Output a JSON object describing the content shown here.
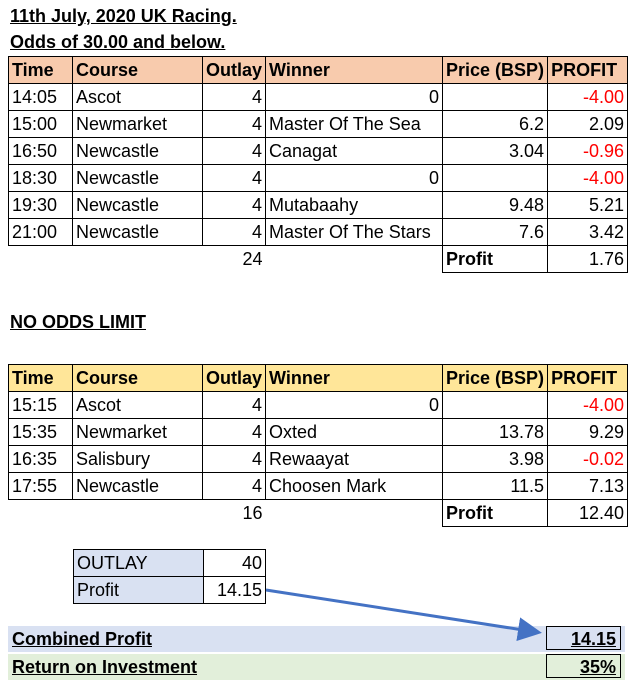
{
  "heading": {
    "line1": "11th July, 2020 UK Racing.",
    "line2": "Odds of 30.00 and below."
  },
  "headers": [
    "Time",
    "Course",
    "Outlay",
    "Winner",
    "Price (BSP)",
    "PROFIT"
  ],
  "table1": {
    "rows": [
      {
        "time": "14:05",
        "course": "Ascot",
        "outlay": "4",
        "winner": "0",
        "winner_align": "right",
        "price": "",
        "profit": "-4.00",
        "negative": true
      },
      {
        "time": "15:00",
        "course": "Newmarket",
        "outlay": "4",
        "winner": "Master Of The Sea",
        "winner_align": "left",
        "price": "6.2",
        "profit": "2.09",
        "negative": false
      },
      {
        "time": "16:50",
        "course": "Newcastle",
        "outlay": "4",
        "winner": "Canagat",
        "winner_align": "left",
        "price": "3.04",
        "profit": "-0.96",
        "negative": true
      },
      {
        "time": "18:30",
        "course": "Newcastle",
        "outlay": "4",
        "winner": "0",
        "winner_align": "right",
        "price": "",
        "profit": "-4.00",
        "negative": true
      },
      {
        "time": "19:30",
        "course": "Newcastle",
        "outlay": "4",
        "winner": "Mutabaahy",
        "winner_align": "left",
        "price": "9.48",
        "profit": "5.21",
        "negative": false
      },
      {
        "time": "21:00",
        "course": "Newcastle",
        "outlay": "4",
        "winner": "Master Of The Stars",
        "winner_align": "left",
        "price": "7.6",
        "profit": "3.42",
        "negative": false
      }
    ],
    "outlay_total": "24",
    "profit_label": "Profit",
    "profit_total": "1.76"
  },
  "section2_title": "NO ODDS LIMIT",
  "table2": {
    "rows": [
      {
        "time": "15:15",
        "course": "Ascot",
        "outlay": "4",
        "winner": "0",
        "winner_align": "right",
        "price": "",
        "profit": "-4.00",
        "negative": true
      },
      {
        "time": "15:35",
        "course": "Newmarket",
        "outlay": "4",
        "winner": "Oxted",
        "winner_align": "left",
        "price": "13.78",
        "profit": "9.29",
        "negative": false
      },
      {
        "time": "16:35",
        "course": "Salisbury",
        "outlay": "4",
        "winner": "Rewaayat",
        "winner_align": "left",
        "price": "3.98",
        "profit": "-0.02",
        "negative": true
      },
      {
        "time": "17:55",
        "course": "Newcastle",
        "outlay": "4",
        "winner": "Choosen Mark",
        "winner_align": "left",
        "price": "11.5",
        "profit": "7.13",
        "negative": false
      }
    ],
    "outlay_total": "16",
    "profit_label": "Profit",
    "profit_total": "12.40"
  },
  "summary": {
    "outlay_label": "OUTLAY",
    "outlay_value": "40",
    "profit_label": "Profit",
    "profit_value": "14.15"
  },
  "combined": {
    "label": "Combined Profit",
    "value": "14.15"
  },
  "roi": {
    "label": "Return on Investment",
    "value": "35%"
  },
  "colors": {
    "header1_bg": "#f8cbad",
    "header2_bg": "#ffe699",
    "summary_bg": "#d9e1f2",
    "roi_bg": "#e2efda",
    "negative_text": "#ff0000",
    "arrow": "#4472c4"
  }
}
